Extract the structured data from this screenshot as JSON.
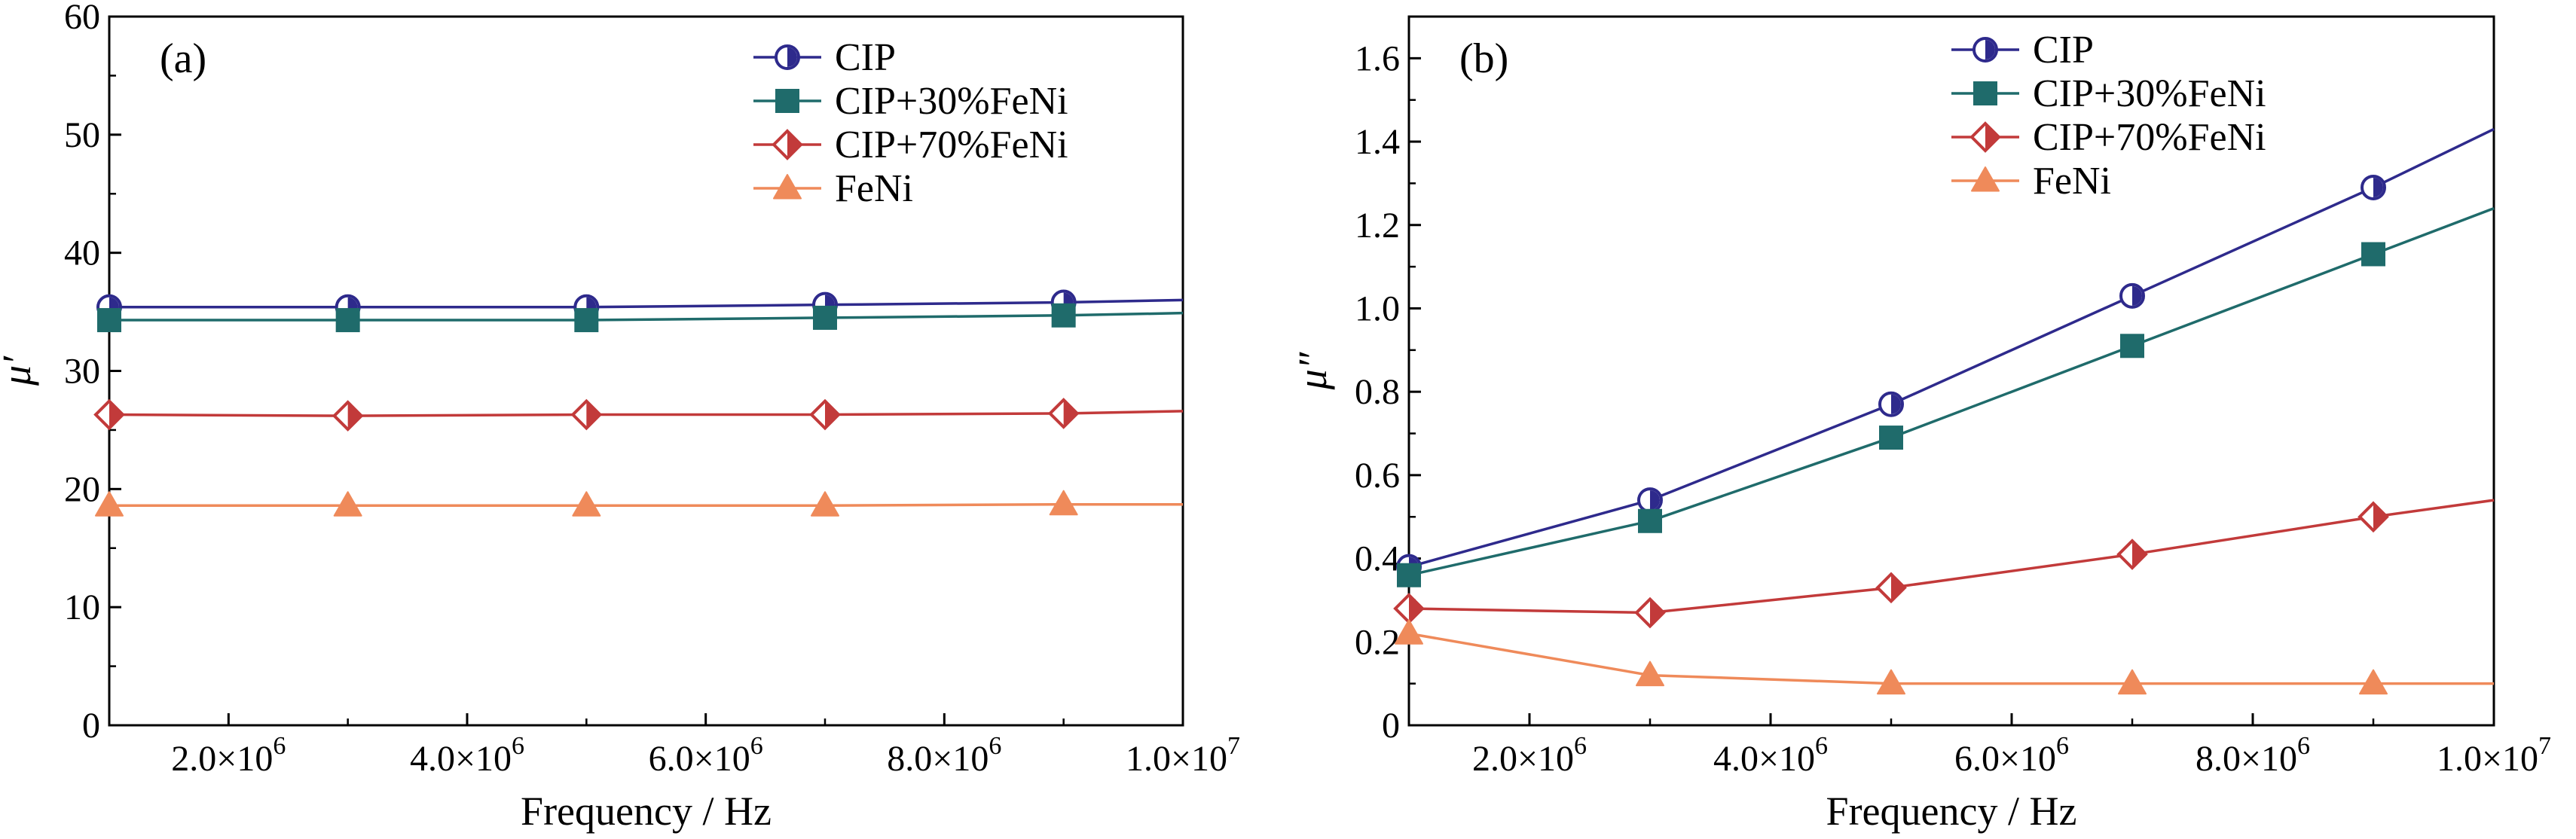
{
  "colors": {
    "CIP": "#2e2a8c",
    "CIP+30%FeNi": "#1f6b6b",
    "CIP+70%FeNi": "#c23a3a",
    "FeNi": "#ef8a5a"
  },
  "chart_data": [
    {
      "type": "line",
      "panel_label": "(a)",
      "xlabel": "Frequency / Hz",
      "ylabel": "μ′",
      "xlim": [
        1000000,
        10000000
      ],
      "ylim": [
        0,
        60
      ],
      "x_ticks": [
        2000000,
        4000000,
        6000000,
        8000000,
        10000000
      ],
      "x_tick_labels": [
        {
          "m": "2.0×10",
          "e": "6"
        },
        {
          "m": "4.0×10",
          "e": "6"
        },
        {
          "m": "6.0×10",
          "e": "6"
        },
        {
          "m": "8.0×10",
          "e": "6"
        },
        {
          "m": "1.0×10",
          "e": "7"
        }
      ],
      "y_ticks": [
        0,
        10,
        20,
        30,
        40,
        50,
        60
      ],
      "y_tick_labels": [
        "0",
        "10",
        "20",
        "30",
        "40",
        "50",
        "60"
      ],
      "legend_position": "top-right",
      "grid": false,
      "x": [
        1000000,
        3000000,
        5000000,
        7000000,
        9000000
      ],
      "series": [
        {
          "name": "CIP",
          "marker": "circle-half",
          "values": [
            35.4,
            35.4,
            35.4,
            35.6,
            35.8
          ],
          "end": 36.0
        },
        {
          "name": "CIP+30%FeNi",
          "marker": "square",
          "values": [
            34.3,
            34.3,
            34.3,
            34.5,
            34.7
          ],
          "end": 34.9
        },
        {
          "name": "CIP+70%FeNi",
          "marker": "diamond-half",
          "values": [
            26.3,
            26.2,
            26.3,
            26.3,
            26.4
          ],
          "end": 26.6
        },
        {
          "name": "FeNi",
          "marker": "triangle",
          "values": [
            18.6,
            18.6,
            18.6,
            18.6,
            18.7
          ],
          "end": 18.7
        }
      ]
    },
    {
      "type": "line",
      "panel_label": "(b)",
      "xlabel": "Frequency / Hz",
      "ylabel": "μ″",
      "xlim": [
        1000000,
        10000000
      ],
      "ylim": [
        0,
        1.7
      ],
      "x_ticks": [
        2000000,
        4000000,
        6000000,
        8000000,
        10000000
      ],
      "x_tick_labels": [
        {
          "m": "2.0×10",
          "e": "6"
        },
        {
          "m": "4.0×10",
          "e": "6"
        },
        {
          "m": "6.0×10",
          "e": "6"
        },
        {
          "m": "8.0×10",
          "e": "6"
        },
        {
          "m": "1.0×10",
          "e": "7"
        }
      ],
      "y_ticks": [
        0,
        0.2,
        0.4,
        0.6,
        0.8,
        1.0,
        1.2,
        1.4,
        1.6
      ],
      "y_tick_labels": [
        "0",
        "0.2",
        "0.4",
        "0.6",
        "0.8",
        "1.0",
        "1.2",
        "1.4",
        "1.6"
      ],
      "legend_position": "top-center",
      "grid": false,
      "x": [
        1000000,
        3000000,
        5000000,
        7000000,
        9000000
      ],
      "series": [
        {
          "name": "CIP",
          "marker": "circle-half",
          "values": [
            0.38,
            0.54,
            0.77,
            1.03,
            1.29
          ],
          "end": 1.43
        },
        {
          "name": "CIP+30%FeNi",
          "marker": "square",
          "values": [
            0.36,
            0.49,
            0.69,
            0.91,
            1.13
          ],
          "end": 1.24
        },
        {
          "name": "CIP+70%FeNi",
          "marker": "diamond-half",
          "values": [
            0.28,
            0.27,
            0.33,
            0.41,
            0.5
          ],
          "end": 0.54
        },
        {
          "name": "FeNi",
          "marker": "triangle",
          "values": [
            0.22,
            0.12,
            0.1,
            0.1,
            0.1
          ],
          "end": 0.1
        }
      ]
    }
  ]
}
